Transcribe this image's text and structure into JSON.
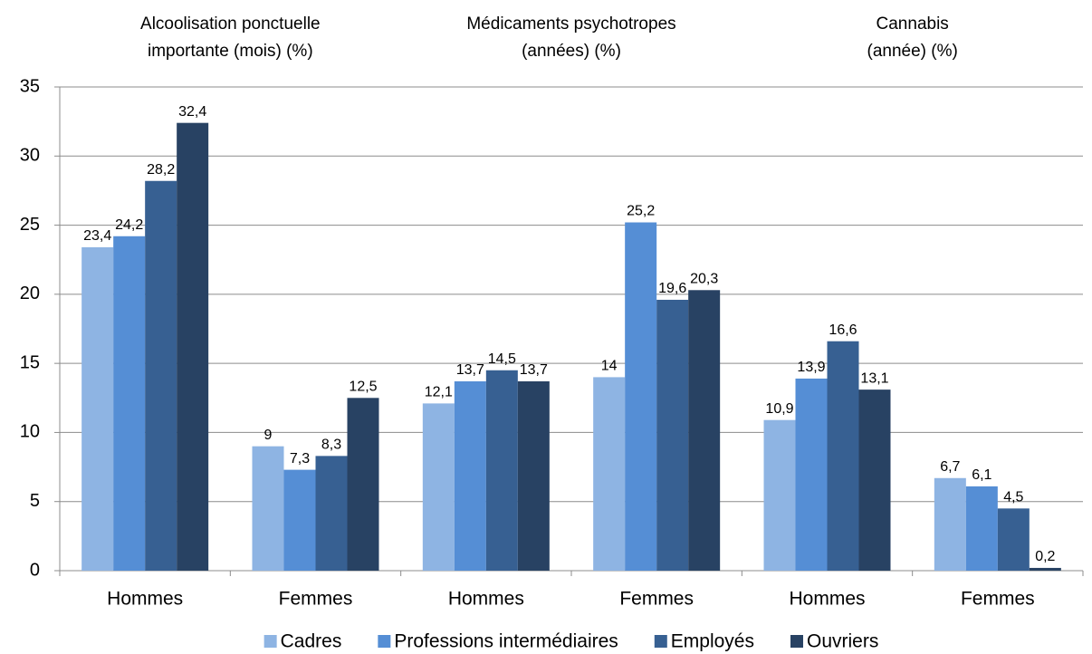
{
  "chart_data": {
    "type": "bar",
    "group_labels": [
      [
        "Alcoolisation ponctuelle",
        "importante (mois) (%)"
      ],
      [
        "Médicaments psychotropes",
        "(années) (%)"
      ],
      [
        "Cannabis",
        "(année) (%)"
      ]
    ],
    "categories": [
      "Hommes",
      "Femmes",
      "Hommes",
      "Femmes",
      "Hommes",
      "Femmes"
    ],
    "series": [
      {
        "name": "Cadres",
        "color": "#8eb4e3",
        "values": [
          23.4,
          9,
          12.1,
          14,
          10.9,
          6.7
        ],
        "value_labels": [
          "23,4",
          "9",
          "12,1",
          "14",
          "10,9",
          "6,7"
        ]
      },
      {
        "name": "Professions intermédiaires",
        "color": "#558ed5",
        "values": [
          24.2,
          7.3,
          13.7,
          25.2,
          13.9,
          6.1
        ],
        "value_labels": [
          "24,2",
          "7,3",
          "13,7",
          "25,2",
          "13,9",
          "6,1"
        ]
      },
      {
        "name": "Employés",
        "color": "#376092",
        "values": [
          28.2,
          8.3,
          14.5,
          19.6,
          16.6,
          4.5
        ],
        "value_labels": [
          "28,2",
          "8,3",
          "14,5",
          "19,6",
          "16,6",
          "4,5"
        ]
      },
      {
        "name": "Ouvriers",
        "color": "#284263",
        "values": [
          32.4,
          12.5,
          13.7,
          20.3,
          13.1,
          0.2
        ],
        "value_labels": [
          "32,4",
          "12,5",
          "13,7",
          "20,3",
          "13,1",
          "0,2"
        ]
      }
    ],
    "ylim": [
      0,
      35
    ],
    "yticks": [
      0,
      5,
      10,
      15,
      20,
      25,
      30,
      35
    ],
    "grid": true,
    "legend": "bottom"
  }
}
